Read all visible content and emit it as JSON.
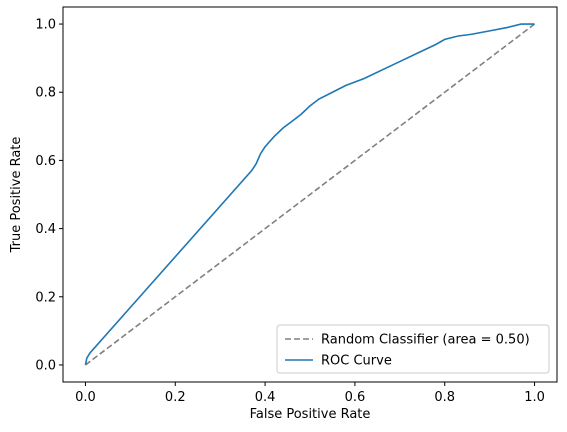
{
  "chart_data": {
    "type": "line",
    "title": "",
    "xlabel": "False Positive Rate",
    "ylabel": "True Positive Rate",
    "xlim": [
      -0.05,
      1.05
    ],
    "ylim": [
      -0.05,
      1.05
    ],
    "xticks": [
      0.0,
      0.2,
      0.4,
      0.6,
      0.8,
      1.0
    ],
    "yticks": [
      0.0,
      0.2,
      0.4,
      0.6,
      0.8,
      1.0
    ],
    "xtick_labels": [
      "0.0",
      "0.2",
      "0.4",
      "0.6",
      "0.8",
      "1.0"
    ],
    "ytick_labels": [
      "0.0",
      "0.2",
      "0.4",
      "0.6",
      "0.8",
      "1.0"
    ],
    "grid": false,
    "legend_position": "lower-right",
    "series": [
      {
        "name": "Random Classifier (area = 0.50)",
        "color": "#808080",
        "style": "dashed",
        "x": [
          0.0,
          1.0
        ],
        "y": [
          0.0,
          1.0
        ]
      },
      {
        "name": "ROC Curve",
        "color": "#1f77b4",
        "style": "solid",
        "x": [
          0.0,
          0.003,
          0.01,
          0.02,
          0.37,
          0.38,
          0.39,
          0.4,
          0.42,
          0.44,
          0.46,
          0.48,
          0.5,
          0.52,
          0.55,
          0.58,
          0.62,
          0.66,
          0.7,
          0.74,
          0.78,
          0.8,
          0.83,
          0.86,
          0.9,
          0.94,
          0.97,
          1.0
        ],
        "y": [
          0.0,
          0.02,
          0.035,
          0.05,
          0.57,
          0.59,
          0.62,
          0.64,
          0.67,
          0.695,
          0.715,
          0.735,
          0.76,
          0.78,
          0.8,
          0.82,
          0.84,
          0.865,
          0.89,
          0.915,
          0.94,
          0.955,
          0.965,
          0.97,
          0.98,
          0.99,
          1.0,
          1.0
        ]
      }
    ]
  }
}
